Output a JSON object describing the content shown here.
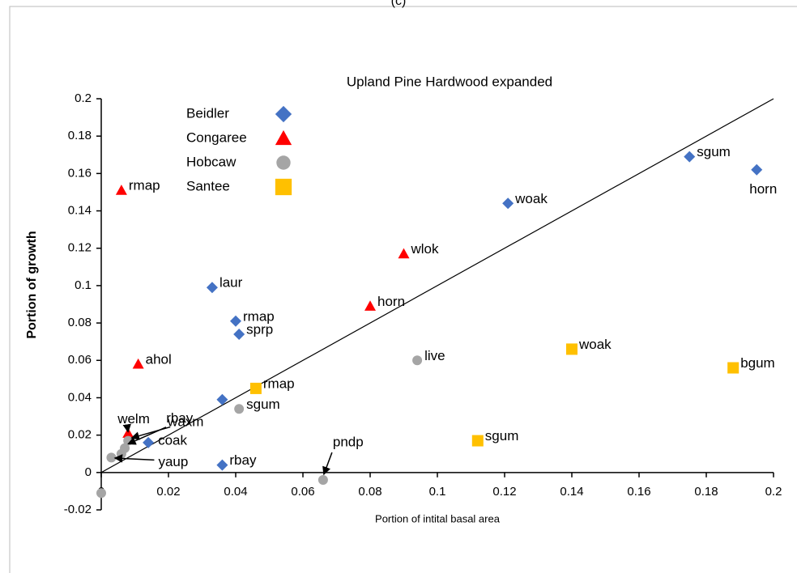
{
  "chart_data": {
    "type": "scatter",
    "caption": "(c)",
    "title": "Upland Pine Hardwood   expanded",
    "x_label": "Portion of intital basal area",
    "y_label": "Portion  of  growth",
    "xlim": [
      0,
      0.2
    ],
    "ylim": [
      -0.02,
      0.2
    ],
    "xticks": [
      0,
      0.02,
      0.04,
      0.06,
      0.08,
      0.1,
      0.12,
      0.14,
      0.16,
      0.18,
      0.2
    ],
    "yticks": [
      -0.02,
      0,
      0.02,
      0.04,
      0.06,
      0.08,
      0.1,
      0.12,
      0.14,
      0.16,
      0.18,
      0.2
    ],
    "legend": "upper left",
    "reference_line": {
      "x": [
        0,
        0.2
      ],
      "y": [
        0,
        0.2
      ]
    },
    "series": [
      {
        "name": "Beidler",
        "color": "#4472c4",
        "marker": "diamond",
        "x": [
          0.175,
          0.195,
          0.121,
          0.033,
          0.04,
          0.041,
          0.036,
          0.014,
          0.036
        ],
        "values": [
          0.169,
          0.162,
          0.144,
          0.099,
          0.081,
          0.074,
          0.039,
          0.016,
          0.004
        ],
        "labels": [
          "sgum",
          "horn",
          "woak",
          "laur",
          "rmap",
          "sprp",
          null,
          "coak",
          "rbay"
        ]
      },
      {
        "name": "Congaree",
        "color": "#ff0000",
        "marker": "triangle",
        "x": [
          0.006,
          0.09,
          0.08,
          0.011,
          0.008
        ],
        "values": [
          0.151,
          0.117,
          0.089,
          0.058,
          0.021
        ],
        "labels": [
          "rmap",
          "wlok",
          "horn",
          "ahol",
          "welm"
        ]
      },
      {
        "name": "Hobcaw",
        "color": "#a5a5a5",
        "marker": "circle",
        "x": [
          0.094,
          0.041,
          0.066,
          0.008,
          0.007,
          0.006,
          0.003,
          0
        ],
        "values": [
          0.06,
          0.034,
          -0.004,
          0.017,
          0.013,
          0.01,
          0.008,
          -0.011
        ],
        "labels": [
          "live",
          "sgum",
          "pndp",
          "rbay",
          "waxm",
          null,
          "yaup",
          null
        ]
      },
      {
        "name": "Santee",
        "color": "#ffc000",
        "marker": "square",
        "x": [
          0.14,
          0.188,
          0.046,
          0.112
        ],
        "values": [
          0.066,
          0.056,
          0.045,
          0.017
        ],
        "labels": [
          "woak",
          "bgum",
          "rmap",
          "sgum"
        ]
      }
    ]
  }
}
